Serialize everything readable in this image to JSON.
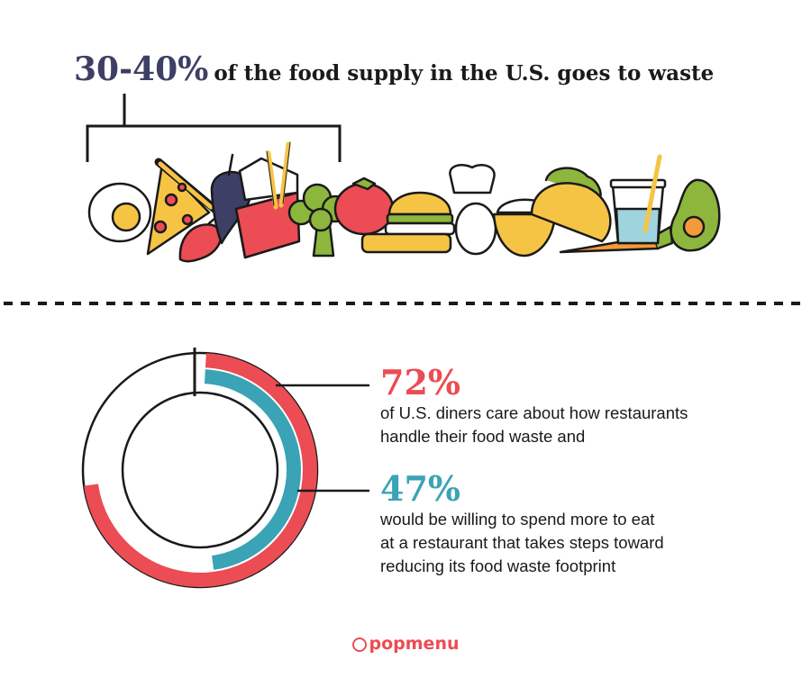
{
  "headline": {
    "highlight": "30-40%",
    "text": "of the food supply in the U.S. goes to waste"
  },
  "chart_data": {
    "type": "donut",
    "series": [
      {
        "value": 72,
        "unit": "%",
        "color": "#ec4c53"
      },
      {
        "value": 47,
        "unit": "%",
        "color": "#3aa3b6"
      }
    ]
  },
  "stats": [
    {
      "value": "72%",
      "color": "#ec4c53",
      "lines": [
        "of U.S. diners care about how restaurants",
        "handle their food waste and"
      ]
    },
    {
      "value": "47%",
      "color": "#3aa3b6",
      "lines": [
        "would be willing to spend more to eat",
        "at a restaurant that takes steps toward",
        "reducing its food waste footprint"
      ]
    }
  ],
  "brand": {
    "name": "popmenu",
    "color": "#ec4c53",
    "logo_icon": "chat-bubble-icon"
  },
  "colors": {
    "navy": "#3d3f66",
    "red": "#ec4c53",
    "teal": "#3aa3b6",
    "yellow": "#f6c445",
    "outline": "#1a1a1a"
  }
}
